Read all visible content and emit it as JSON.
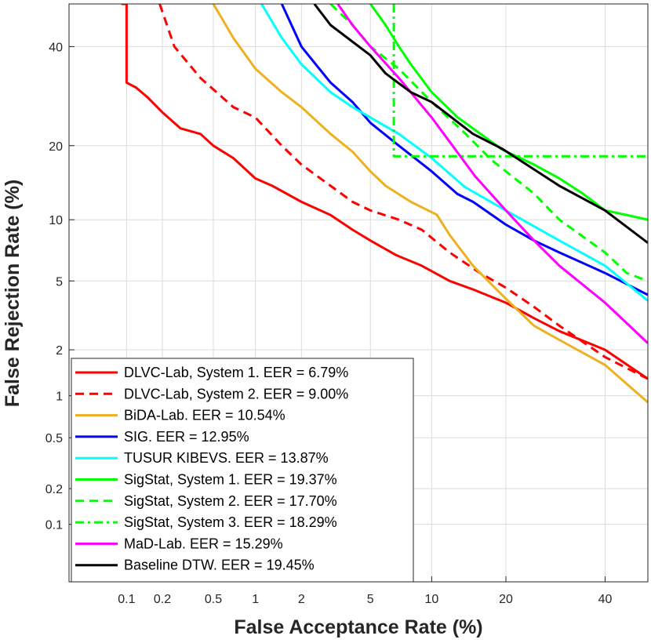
{
  "chart_data": {
    "type": "line",
    "title": "",
    "xlabel": "False Acceptance Rate (%)",
    "ylabel": "False Rejection Rate (%)",
    "scale": "normal-deviate (DET)",
    "xlim": [
      0.03,
      50
    ],
    "ylim": [
      0.03,
      50
    ],
    "grid": true,
    "legend_position": "bottom-left",
    "x_ticks": [
      0.1,
      0.2,
      0.5,
      1,
      2,
      5,
      10,
      20,
      40
    ],
    "x_tick_labels": [
      "0.1",
      "0.2",
      "0.5",
      "1",
      "2",
      "5",
      "10",
      "20",
      "40"
    ],
    "y_ticks": [
      0.1,
      0.2,
      0.5,
      1,
      2,
      5,
      10,
      20,
      40
    ],
    "y_tick_labels": [
      "0.1",
      "0.2",
      "0.5",
      "1",
      "2",
      "5",
      "10",
      "20",
      "40"
    ],
    "series": [
      {
        "name": "DLVC-Lab, System 1. EER = 6.79%",
        "color": "#ff0000",
        "style": "solid",
        "points": [
          [
            0.09,
            50
          ],
          [
            0.1,
            50
          ],
          [
            0.1,
            32
          ],
          [
            0.12,
            31
          ],
          [
            0.15,
            29
          ],
          [
            0.2,
            26
          ],
          [
            0.28,
            23
          ],
          [
            0.4,
            22
          ],
          [
            0.5,
            20
          ],
          [
            0.7,
            18
          ],
          [
            1,
            15
          ],
          [
            1.3,
            14
          ],
          [
            2,
            12
          ],
          [
            3,
            10.5
          ],
          [
            4,
            9
          ],
          [
            5,
            8
          ],
          [
            6.79,
            6.79
          ],
          [
            9,
            6
          ],
          [
            12,
            5
          ],
          [
            15,
            4.5
          ],
          [
            20,
            3.8
          ],
          [
            25,
            3.1
          ],
          [
            30,
            2.6
          ],
          [
            40,
            2
          ],
          [
            50,
            1.3
          ]
        ]
      },
      {
        "name": "DLVC-Lab, System 2. EER = 9.00%",
        "color": "#ff0000",
        "style": "dash",
        "points": [
          [
            0.19,
            50
          ],
          [
            0.25,
            40
          ],
          [
            0.4,
            33
          ],
          [
            0.7,
            27
          ],
          [
            1,
            25
          ],
          [
            1.5,
            20
          ],
          [
            2,
            17
          ],
          [
            3,
            14
          ],
          [
            4,
            12
          ],
          [
            5,
            11
          ],
          [
            7,
            10
          ],
          [
            9,
            9
          ],
          [
            12,
            7
          ],
          [
            16,
            5.5
          ],
          [
            20,
            4.6
          ],
          [
            25,
            3.6
          ],
          [
            30,
            2.8
          ],
          [
            40,
            1.8
          ],
          [
            50,
            1.3
          ]
        ]
      },
      {
        "name": "BiDA-Lab. EER = 10.54%",
        "color": "#edb120",
        "style": "solid",
        "points": [
          [
            0.5,
            50
          ],
          [
            0.7,
            42
          ],
          [
            1,
            35
          ],
          [
            1.5,
            30
          ],
          [
            2,
            27
          ],
          [
            3,
            22
          ],
          [
            4,
            19
          ],
          [
            5,
            16
          ],
          [
            6,
            14
          ],
          [
            8,
            12
          ],
          [
            10.54,
            10.54
          ],
          [
            12,
            8.5
          ],
          [
            15,
            6
          ],
          [
            20,
            4
          ],
          [
            25,
            2.8
          ],
          [
            30,
            2.3
          ],
          [
            40,
            1.6
          ],
          [
            50,
            0.9
          ]
        ]
      },
      {
        "name": "SIG. EER = 12.95%",
        "color": "#0000ff",
        "style": "solid",
        "points": [
          [
            1.5,
            50
          ],
          [
            2,
            40
          ],
          [
            3,
            32
          ],
          [
            4,
            28
          ],
          [
            5,
            24
          ],
          [
            7,
            20
          ],
          [
            10,
            16
          ],
          [
            12.95,
            12.95
          ],
          [
            15,
            12
          ],
          [
            20,
            9.5
          ],
          [
            25,
            8
          ],
          [
            30,
            7
          ],
          [
            40,
            5.5
          ],
          [
            50,
            4.2
          ]
        ]
      },
      {
        "name": "TUSUR KIBEVS. EER = 13.87%",
        "color": "#00ffff",
        "style": "solid",
        "points": [
          [
            1.1,
            50
          ],
          [
            1.5,
            42
          ],
          [
            2,
            36
          ],
          [
            3,
            30
          ],
          [
            4,
            27
          ],
          [
            5,
            25
          ],
          [
            7,
            22
          ],
          [
            10,
            18
          ],
          [
            13.87,
            13.87
          ],
          [
            20,
            11
          ],
          [
            30,
            8
          ],
          [
            40,
            6
          ],
          [
            50,
            3.9
          ]
        ]
      },
      {
        "name": "SigStat, System 1. EER = 19.37%",
        "color": "#00ff00",
        "style": "solid",
        "points": [
          [
            5,
            50
          ],
          [
            6,
            45
          ],
          [
            7,
            40
          ],
          [
            8,
            36
          ],
          [
            10,
            30
          ],
          [
            13,
            25
          ],
          [
            19.37,
            19.37
          ],
          [
            25,
            17
          ],
          [
            30,
            15
          ],
          [
            35,
            13
          ],
          [
            40,
            11
          ],
          [
            45,
            10.5
          ],
          [
            50,
            10
          ]
        ]
      },
      {
        "name": "SigStat, System 2. EER = 17.70%",
        "color": "#00ff00",
        "style": "dash",
        "points": [
          [
            3,
            50
          ],
          [
            4,
            45
          ],
          [
            5,
            40
          ],
          [
            7,
            35
          ],
          [
            10,
            28
          ],
          [
            14,
            22
          ],
          [
            17.7,
            17.7
          ],
          [
            25,
            13
          ],
          [
            30,
            10
          ],
          [
            40,
            7
          ],
          [
            45,
            5.5
          ],
          [
            50,
            5
          ]
        ]
      },
      {
        "name": "SigStat, System 3. EER = 18.29%",
        "color": "#00ff00",
        "style": "dashdot",
        "points": [
          [
            6.6,
            50
          ],
          [
            6.6,
            18.29
          ],
          [
            50,
            18.29
          ]
        ]
      },
      {
        "name": "MaD-Lab. EER = 15.29%",
        "color": "#ff00ff",
        "style": "solid",
        "points": [
          [
            3.3,
            50
          ],
          [
            4,
            45
          ],
          [
            5,
            40
          ],
          [
            7,
            33
          ],
          [
            10,
            25
          ],
          [
            15.29,
            15.29
          ],
          [
            20,
            11
          ],
          [
            25,
            8
          ],
          [
            30,
            6
          ],
          [
            40,
            3.8
          ],
          [
            50,
            2.2
          ]
        ]
      },
      {
        "name": "Baseline DTW. EER = 19.45%",
        "color": "#000000",
        "style": "solid",
        "points": [
          [
            2.4,
            50
          ],
          [
            3,
            45
          ],
          [
            5,
            38
          ],
          [
            6,
            34
          ],
          [
            8,
            30
          ],
          [
            10,
            28
          ],
          [
            15,
            22
          ],
          [
            19.45,
            19.45
          ],
          [
            30,
            14
          ],
          [
            40,
            11
          ],
          [
            50,
            7.8
          ]
        ]
      }
    ]
  }
}
